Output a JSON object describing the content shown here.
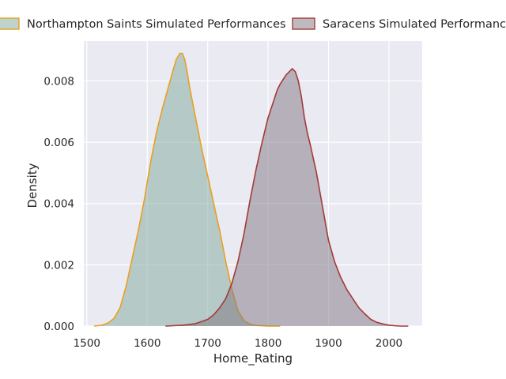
{
  "chart_data": {
    "type": "area",
    "title": "",
    "xlabel": "Home_Rating",
    "ylabel": "Density",
    "xlim": [
      1495,
      2055
    ],
    "ylim": [
      0,
      0.0093
    ],
    "xticks": [
      1500,
      1600,
      1700,
      1800,
      1900,
      2000
    ],
    "yticks": [
      0,
      0.002,
      0.004,
      0.006,
      0.008
    ],
    "ytick_labels": [
      "0.000",
      "0.002",
      "0.004",
      "0.006",
      "0.008"
    ],
    "grid": true,
    "legend_position": "top",
    "background_color": "#eaeaf2",
    "series": [
      {
        "name": "Northampton Saints Simulated Performances",
        "fill_color": "#7fa89b",
        "line_color": "#e8a020",
        "x": [
          1512,
          1525,
          1535,
          1545,
          1555,
          1565,
          1575,
          1585,
          1595,
          1605,
          1615,
          1625,
          1635,
          1642,
          1648,
          1654,
          1658,
          1662,
          1666,
          1670,
          1676,
          1682,
          1690,
          1700,
          1710,
          1720,
          1730,
          1740,
          1750,
          1760,
          1770,
          1780,
          1790,
          1800,
          1810,
          1820
        ],
        "y": [
          0.0,
          3e-05,
          0.0001,
          0.00025,
          0.0006,
          0.0013,
          0.0022,
          0.0031,
          0.0041,
          0.0053,
          0.0063,
          0.0071,
          0.0078,
          0.0083,
          0.0087,
          0.0089,
          0.0089,
          0.0087,
          0.0083,
          0.0078,
          0.0072,
          0.0066,
          0.0058,
          0.0049,
          0.004,
          0.0031,
          0.0021,
          0.0012,
          0.0005,
          0.00018,
          6e-05,
          2e-05,
          1e-05,
          0.0,
          0.0,
          0.0
        ]
      },
      {
        "name": "Saracens Simulated Performances",
        "fill_color": "#7f7580",
        "line_color": "#a33a3a",
        "x": [
          1630,
          1660,
          1680,
          1700,
          1710,
          1720,
          1730,
          1740,
          1750,
          1760,
          1770,
          1780,
          1790,
          1800,
          1810,
          1815,
          1820,
          1825,
          1830,
          1835,
          1840,
          1845,
          1850,
          1855,
          1860,
          1865,
          1870,
          1880,
          1890,
          1900,
          1910,
          1920,
          1930,
          1940,
          1950,
          1960,
          1970,
          1980,
          1990,
          2000,
          2010,
          2020,
          2032
        ],
        "y": [
          0.0,
          3e-05,
          8e-05,
          0.00022,
          0.00037,
          0.0006,
          0.0009,
          0.0014,
          0.0021,
          0.003,
          0.0041,
          0.0051,
          0.006,
          0.0068,
          0.0074,
          0.0077,
          0.0079,
          0.00805,
          0.0082,
          0.0083,
          0.0084,
          0.0083,
          0.008,
          0.0075,
          0.0068,
          0.0063,
          0.0059,
          0.005,
          0.0039,
          0.0028,
          0.0021,
          0.0016,
          0.0012,
          0.0009,
          0.0006,
          0.0004,
          0.00022,
          0.00012,
          7e-05,
          3e-05,
          1e-05,
          0.0,
          0.0
        ]
      }
    ]
  }
}
